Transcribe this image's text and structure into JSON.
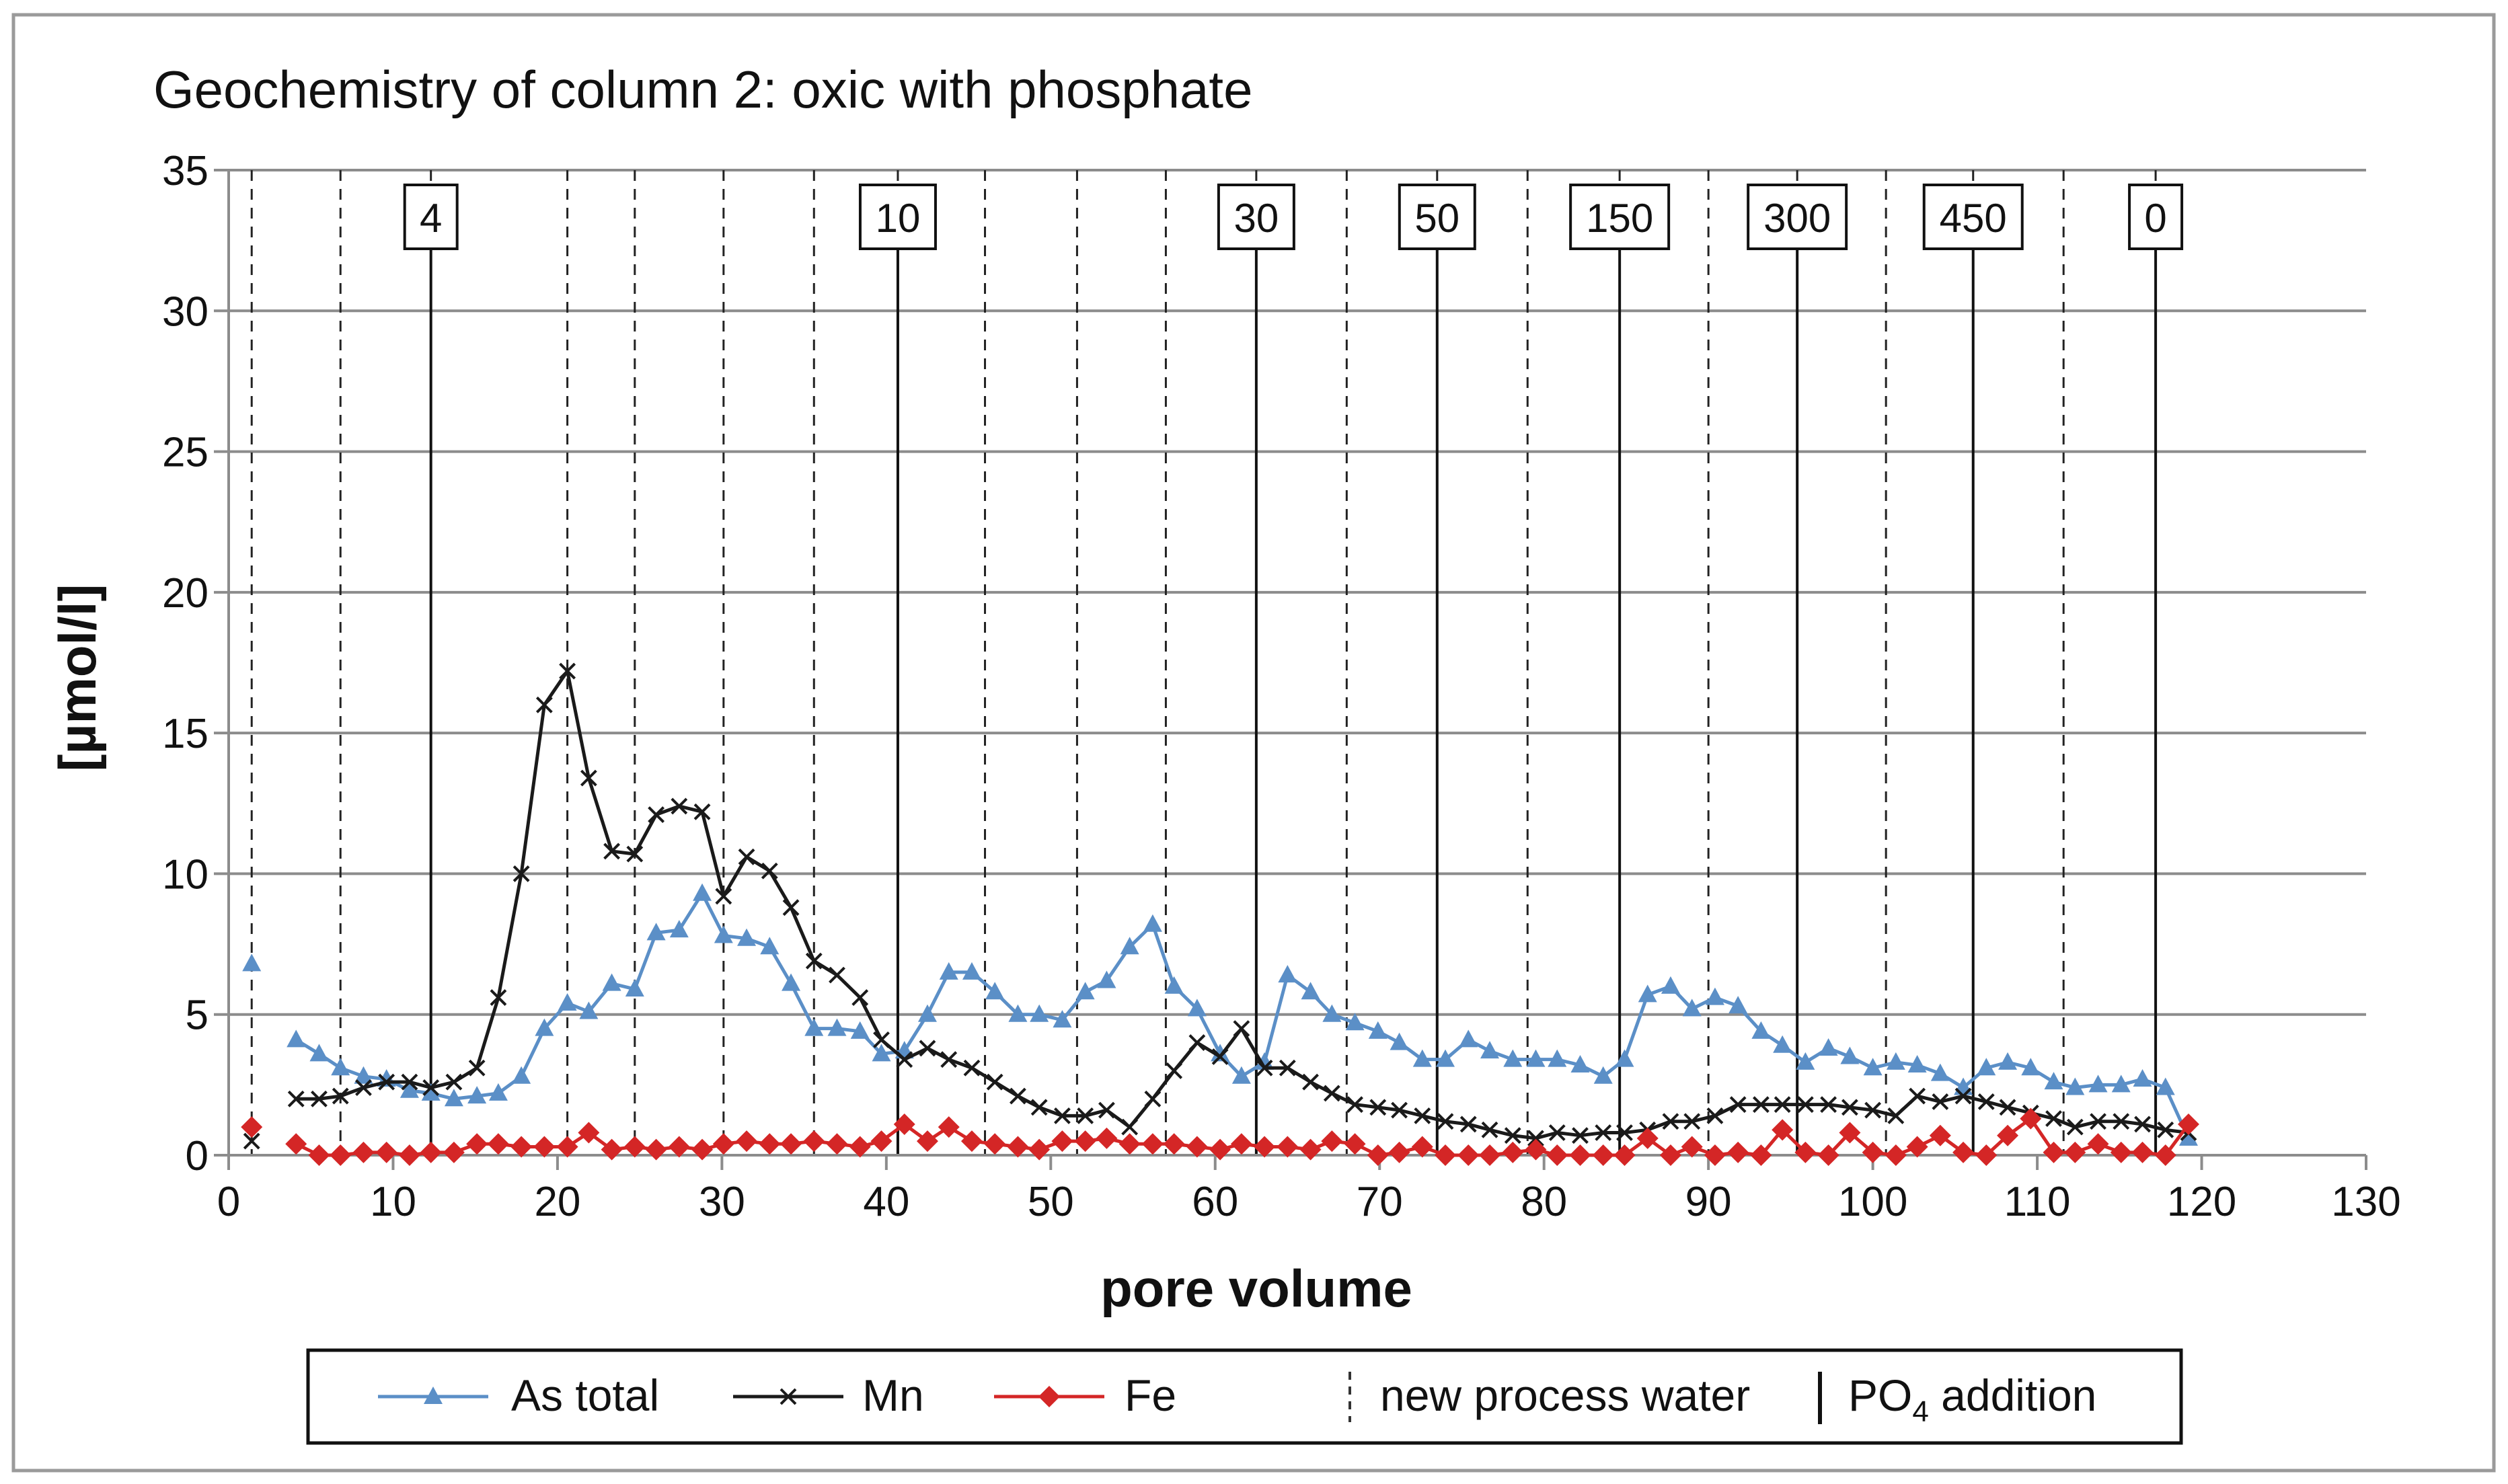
{
  "chart_data": {
    "type": "line",
    "title": "Geochemistry of column 2: oxic with phosphate",
    "xlabel": "pore volume",
    "ylabel": "[µmol/l]",
    "xlim": [
      0,
      130
    ],
    "ylim": [
      0,
      35
    ],
    "xticks": [
      0,
      10,
      20,
      30,
      40,
      50,
      60,
      70,
      80,
      90,
      100,
      110,
      120,
      130
    ],
    "yticks": [
      0,
      5,
      10,
      15,
      20,
      25,
      30,
      35
    ],
    "grid": "horizontal",
    "colors": {
      "as_total": "#5b8fc7",
      "mn": "#1a1a1a",
      "fe": "#d42626"
    },
    "series": [
      {
        "key": "as_total",
        "name": "As total",
        "marker": "triangle",
        "points": [
          [
            1.4,
            6.8
          ],
          null,
          [
            4.1,
            4.1
          ],
          [
            5.5,
            3.6
          ],
          [
            6.8,
            3.1
          ],
          [
            8.2,
            2.8
          ],
          [
            9.6,
            2.7
          ],
          [
            11.0,
            2.3
          ],
          [
            12.3,
            2.2
          ],
          [
            13.7,
            2.0
          ],
          [
            15.1,
            2.1
          ],
          [
            16.4,
            2.2
          ],
          [
            17.8,
            2.8
          ],
          [
            19.2,
            4.5
          ],
          [
            20.6,
            5.4
          ],
          [
            21.9,
            5.1
          ],
          [
            23.3,
            6.1
          ],
          [
            24.7,
            5.9
          ],
          [
            26.0,
            7.9
          ],
          [
            27.4,
            8.0
          ],
          [
            28.8,
            9.3
          ],
          [
            30.1,
            7.8
          ],
          [
            31.5,
            7.7
          ],
          [
            32.9,
            7.4
          ],
          [
            34.2,
            6.1
          ],
          [
            35.6,
            4.5
          ],
          [
            37.0,
            4.5
          ],
          [
            38.4,
            4.4
          ],
          [
            39.7,
            3.6
          ],
          [
            41.1,
            3.7
          ],
          [
            42.5,
            5.0
          ],
          [
            43.8,
            6.5
          ],
          [
            45.2,
            6.5
          ],
          [
            46.6,
            5.8
          ],
          [
            48.0,
            5.0
          ],
          [
            49.3,
            5.0
          ],
          [
            50.7,
            4.8
          ],
          [
            52.1,
            5.8
          ],
          [
            53.4,
            6.2
          ],
          [
            54.8,
            7.4
          ],
          [
            56.2,
            8.2
          ],
          [
            57.5,
            6.0
          ],
          [
            58.9,
            5.2
          ],
          [
            60.3,
            3.6
          ],
          [
            61.6,
            2.8
          ],
          [
            63.0,
            3.3
          ],
          [
            64.4,
            6.4
          ],
          [
            65.8,
            5.8
          ],
          [
            67.1,
            5.0
          ],
          [
            68.5,
            4.7
          ],
          [
            69.9,
            4.4
          ],
          [
            71.2,
            4.0
          ],
          [
            72.6,
            3.4
          ],
          [
            74.0,
            3.4
          ],
          [
            75.4,
            4.1
          ],
          [
            76.7,
            3.7
          ],
          [
            78.1,
            3.4
          ],
          [
            79.5,
            3.4
          ],
          [
            80.8,
            3.4
          ],
          [
            82.2,
            3.2
          ],
          [
            83.6,
            2.8
          ],
          [
            84.9,
            3.4
          ],
          [
            86.3,
            5.7
          ],
          [
            87.7,
            6.0
          ],
          [
            89.0,
            5.2
          ],
          [
            90.4,
            5.6
          ],
          [
            91.8,
            5.3
          ],
          [
            93.2,
            4.4
          ],
          [
            94.5,
            3.9
          ],
          [
            95.9,
            3.3
          ],
          [
            97.3,
            3.8
          ],
          [
            98.6,
            3.5
          ],
          [
            100.0,
            3.1
          ],
          [
            101.4,
            3.3
          ],
          [
            102.7,
            3.2
          ],
          [
            104.1,
            2.9
          ],
          [
            105.5,
            2.4
          ],
          [
            106.9,
            3.1
          ],
          [
            108.2,
            3.3
          ],
          [
            109.6,
            3.1
          ],
          [
            111.0,
            2.6
          ],
          [
            112.3,
            2.4
          ],
          [
            113.7,
            2.5
          ],
          [
            115.1,
            2.5
          ],
          [
            116.4,
            2.7
          ],
          [
            117.8,
            2.4
          ],
          [
            119.2,
            0.6
          ]
        ]
      },
      {
        "key": "mn",
        "name": "Mn",
        "marker": "x",
        "points": [
          [
            1.4,
            0.5
          ],
          null,
          [
            4.1,
            2.0
          ],
          [
            5.5,
            2.0
          ],
          [
            6.8,
            2.1
          ],
          [
            8.2,
            2.4
          ],
          [
            9.6,
            2.6
          ],
          [
            11.0,
            2.6
          ],
          [
            12.3,
            2.4
          ],
          [
            13.7,
            2.6
          ],
          [
            15.1,
            3.1
          ],
          [
            16.4,
            5.6
          ],
          [
            17.8,
            10.0
          ],
          [
            19.2,
            16.0
          ],
          [
            20.6,
            17.2
          ],
          [
            21.9,
            13.4
          ],
          [
            23.3,
            10.8
          ],
          [
            24.7,
            10.7
          ],
          [
            26.0,
            12.1
          ],
          [
            27.4,
            12.4
          ],
          [
            28.8,
            12.2
          ],
          [
            30.1,
            9.2
          ],
          [
            31.5,
            10.6
          ],
          [
            32.9,
            10.1
          ],
          [
            34.2,
            8.8
          ],
          [
            35.6,
            6.9
          ],
          [
            37.0,
            6.4
          ],
          [
            38.4,
            5.6
          ],
          [
            39.7,
            4.1
          ],
          [
            41.1,
            3.4
          ],
          [
            42.5,
            3.8
          ],
          [
            43.8,
            3.4
          ],
          [
            45.2,
            3.1
          ],
          [
            46.6,
            2.6
          ],
          [
            48.0,
            2.1
          ],
          [
            49.3,
            1.7
          ],
          [
            50.7,
            1.4
          ],
          [
            52.1,
            1.4
          ],
          [
            53.4,
            1.6
          ],
          [
            54.8,
            1.0
          ],
          [
            56.2,
            2.0
          ],
          [
            57.5,
            3.0
          ],
          [
            58.9,
            4.0
          ],
          [
            60.3,
            3.5
          ],
          [
            61.6,
            4.5
          ],
          [
            63.0,
            3.1
          ],
          [
            64.4,
            3.1
          ],
          [
            65.8,
            2.6
          ],
          [
            67.1,
            2.2
          ],
          [
            68.5,
            1.8
          ],
          [
            69.9,
            1.7
          ],
          [
            71.2,
            1.6
          ],
          [
            72.6,
            1.4
          ],
          [
            74.0,
            1.2
          ],
          [
            75.4,
            1.1
          ],
          [
            76.7,
            0.9
          ],
          [
            78.1,
            0.7
          ],
          [
            79.5,
            0.6
          ],
          [
            80.8,
            0.8
          ],
          [
            82.2,
            0.7
          ],
          [
            83.6,
            0.8
          ],
          [
            84.9,
            0.8
          ],
          [
            86.3,
            0.9
          ],
          [
            87.7,
            1.2
          ],
          [
            89.0,
            1.2
          ],
          [
            90.4,
            1.4
          ],
          [
            91.8,
            1.8
          ],
          [
            93.2,
            1.8
          ],
          [
            94.5,
            1.8
          ],
          [
            95.9,
            1.8
          ],
          [
            97.3,
            1.8
          ],
          [
            98.6,
            1.7
          ],
          [
            100.0,
            1.6
          ],
          [
            101.4,
            1.4
          ],
          [
            102.7,
            2.1
          ],
          [
            104.1,
            1.9
          ],
          [
            105.5,
            2.1
          ],
          [
            106.9,
            1.9
          ],
          [
            108.2,
            1.7
          ],
          [
            109.6,
            1.5
          ],
          [
            111.0,
            1.3
          ],
          [
            112.3,
            1.0
          ],
          [
            113.7,
            1.2
          ],
          [
            115.1,
            1.2
          ],
          [
            116.4,
            1.1
          ],
          [
            117.8,
            0.9
          ],
          [
            119.2,
            0.8
          ]
        ]
      },
      {
        "key": "fe",
        "name": "Fe",
        "marker": "diamond",
        "points": [
          [
            1.4,
            1.0
          ],
          null,
          [
            4.1,
            0.4
          ],
          [
            5.5,
            0.0
          ],
          [
            6.8,
            0.0
          ],
          [
            8.2,
            0.1
          ],
          [
            9.6,
            0.1
          ],
          [
            11.0,
            0.0
          ],
          [
            12.3,
            0.1
          ],
          [
            13.7,
            0.1
          ],
          [
            15.1,
            0.4
          ],
          [
            16.4,
            0.4
          ],
          [
            17.8,
            0.3
          ],
          [
            19.2,
            0.3
          ],
          [
            20.6,
            0.3
          ],
          [
            21.9,
            0.8
          ],
          [
            23.3,
            0.2
          ],
          [
            24.7,
            0.3
          ],
          [
            26.0,
            0.2
          ],
          [
            27.4,
            0.3
          ],
          [
            28.8,
            0.2
          ],
          [
            30.1,
            0.4
          ],
          [
            31.5,
            0.5
          ],
          [
            32.9,
            0.4
          ],
          [
            34.2,
            0.4
          ],
          [
            35.6,
            0.5
          ],
          [
            37.0,
            0.4
          ],
          [
            38.4,
            0.3
          ],
          [
            39.7,
            0.5
          ],
          [
            41.1,
            1.1
          ],
          [
            42.5,
            0.5
          ],
          [
            43.8,
            1.0
          ],
          [
            45.2,
            0.5
          ],
          [
            46.6,
            0.4
          ],
          [
            48.0,
            0.3
          ],
          [
            49.3,
            0.2
          ],
          [
            50.7,
            0.5
          ],
          [
            52.1,
            0.5
          ],
          [
            53.4,
            0.6
          ],
          [
            54.8,
            0.4
          ],
          [
            56.2,
            0.4
          ],
          [
            57.5,
            0.4
          ],
          [
            58.9,
            0.3
          ],
          [
            60.3,
            0.2
          ],
          [
            61.6,
            0.4
          ],
          [
            63.0,
            0.3
          ],
          [
            64.4,
            0.3
          ],
          [
            65.8,
            0.2
          ],
          [
            67.1,
            0.5
          ],
          [
            68.5,
            0.4
          ],
          [
            69.9,
            0.0
          ],
          [
            71.2,
            0.1
          ],
          [
            72.6,
            0.3
          ],
          [
            74.0,
            0.0
          ],
          [
            75.4,
            0.0
          ],
          [
            76.7,
            0.0
          ],
          [
            78.1,
            0.1
          ],
          [
            79.5,
            0.2
          ],
          [
            80.8,
            0.0
          ],
          [
            82.2,
            0.0
          ],
          [
            83.6,
            0.0
          ],
          [
            84.9,
            0.0
          ],
          [
            86.3,
            0.6
          ],
          [
            87.7,
            0.0
          ],
          [
            89.0,
            0.3
          ],
          [
            90.4,
            0.0
          ],
          [
            91.8,
            0.1
          ],
          [
            93.2,
            0.0
          ],
          [
            94.5,
            0.9
          ],
          [
            95.9,
            0.1
          ],
          [
            97.3,
            0.0
          ],
          [
            98.6,
            0.8
          ],
          [
            100.0,
            0.1
          ],
          [
            101.4,
            0.0
          ],
          [
            102.7,
            0.3
          ],
          [
            104.1,
            0.7
          ],
          [
            105.5,
            0.1
          ],
          [
            106.9,
            0.0
          ],
          [
            108.2,
            0.7
          ],
          [
            109.6,
            1.3
          ],
          [
            111.0,
            0.1
          ],
          [
            112.3,
            0.1
          ],
          [
            113.7,
            0.4
          ],
          [
            115.1,
            0.1
          ],
          [
            116.4,
            0.1
          ],
          [
            117.8,
            0.0
          ],
          [
            119.2,
            1.1
          ]
        ]
      }
    ],
    "process_water_lines": [
      1.4,
      6.8,
      12.3,
      20.6,
      24.7,
      30.1,
      35.6,
      40.7,
      46.0,
      51.6,
      57.0,
      62.5,
      68.0,
      73.5,
      79.0,
      84.6,
      90.0,
      95.4,
      100.8,
      106.1,
      111.6,
      117.2
    ],
    "po4_additions": [
      {
        "x": 12.3,
        "label": "4"
      },
      {
        "x": 40.7,
        "label": "10"
      },
      {
        "x": 62.5,
        "label": "30"
      },
      {
        "x": 73.5,
        "label": "50"
      },
      {
        "x": 84.6,
        "label": "150"
      },
      {
        "x": 95.4,
        "label": "300"
      },
      {
        "x": 106.1,
        "label": "450"
      },
      {
        "x": 117.2,
        "label": "0"
      }
    ],
    "legend": {
      "position": "bottom",
      "items": [
        "As total",
        "Mn",
        "Fe",
        "new process water",
        "PO4 addition"
      ],
      "process_water_label": "new process water",
      "po4_label_main": "PO",
      "po4_label_sub": "4",
      "po4_label_rest": " addition"
    }
  }
}
